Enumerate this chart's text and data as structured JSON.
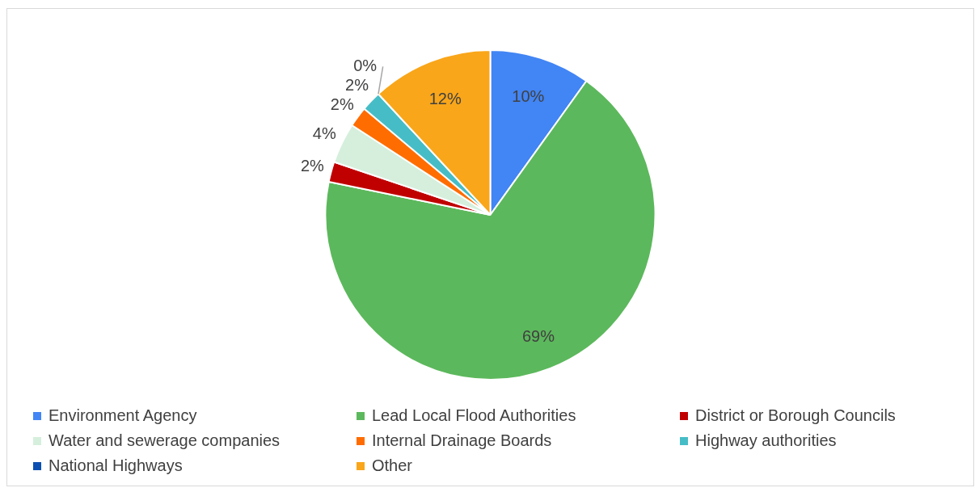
{
  "chart_data": {
    "type": "pie",
    "categories": [
      "Environment Agency",
      "Lead Local Flood Authorities",
      "District or Borough Councils",
      "Water and sewerage companies",
      "Internal Drainage Boards",
      "Highway authorities",
      "National Highways",
      "Other"
    ],
    "values": [
      10,
      69,
      2,
      4,
      2,
      2,
      0,
      12
    ],
    "colors": [
      "#4285f4",
      "#5cb85c",
      "#c00000",
      "#d5efdc",
      "#ff6d00",
      "#46bdc6",
      "#0b4fb0",
      "#f9a61a"
    ],
    "value_labels": [
      "10%",
      "69%",
      "2%",
      "4%",
      "2%",
      "2%",
      "0%",
      "12%"
    ],
    "legend": "bottom"
  }
}
